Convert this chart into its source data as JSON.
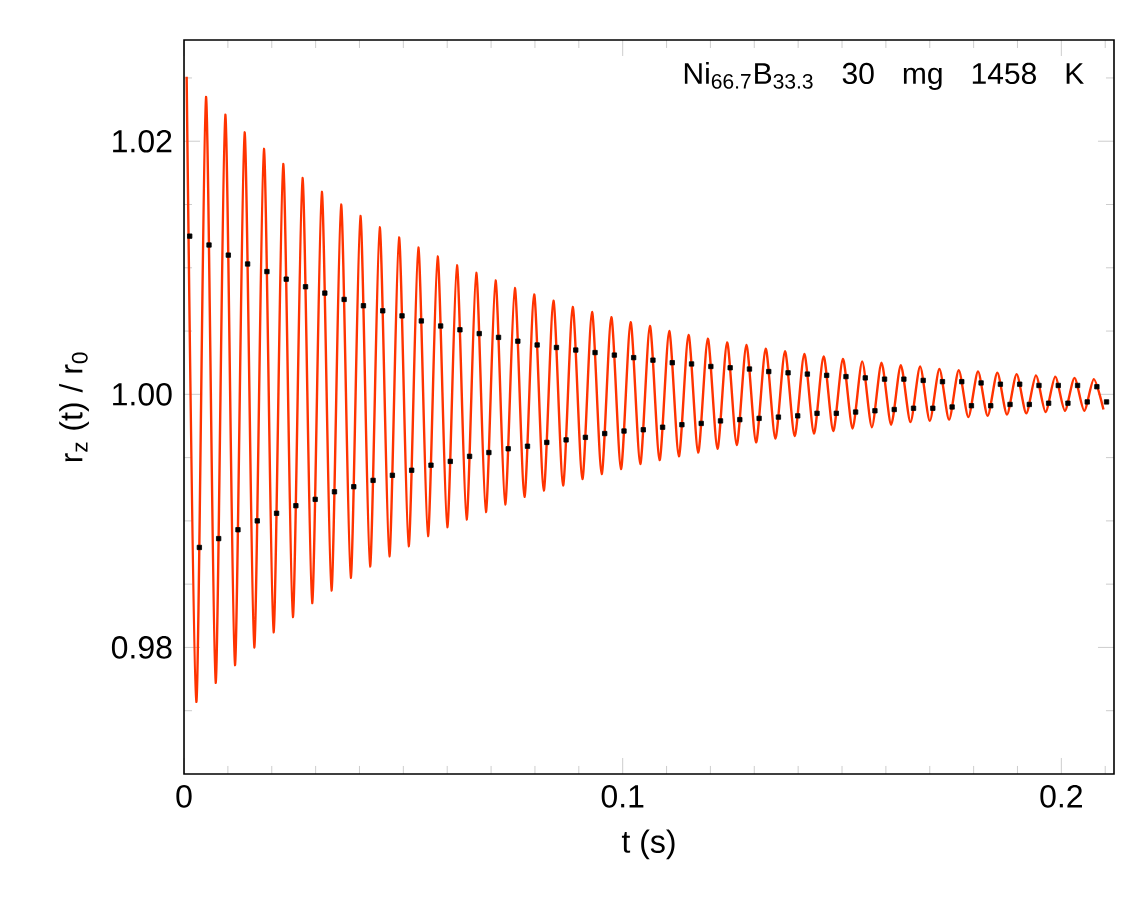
{
  "chart_data": {
    "type": "line",
    "xlabel": "t (s)",
    "ylabel": "r$_{z}$ (t) / r$_{0}$",
    "annotations": [
      "Ni$_{66.7}$B$_{33.3}$   30 mg   1458 K"
    ],
    "xlim": [
      0,
      0.212
    ],
    "ylim": [
      0.97,
      1.028
    ],
    "xticks": [
      {
        "value": 0,
        "label": "0"
      },
      {
        "value": 0.01,
        "label": null
      },
      {
        "value": 0.02,
        "label": null
      },
      {
        "value": 0.03,
        "label": null
      },
      {
        "value": 0.04,
        "label": null
      },
      {
        "value": 0.05,
        "label": null
      },
      {
        "value": 0.06,
        "label": null
      },
      {
        "value": 0.07,
        "label": null
      },
      {
        "value": 0.08,
        "label": null
      },
      {
        "value": 0.09,
        "label": null
      },
      {
        "value": 0.1,
        "label": "0.1"
      },
      {
        "value": 0.11,
        "label": null
      },
      {
        "value": 0.12,
        "label": null
      },
      {
        "value": 0.13,
        "label": null
      },
      {
        "value": 0.14,
        "label": null
      },
      {
        "value": 0.15,
        "label": null
      },
      {
        "value": 0.16,
        "label": null
      },
      {
        "value": 0.17,
        "label": null
      },
      {
        "value": 0.18,
        "label": null
      },
      {
        "value": 0.19,
        "label": null
      },
      {
        "value": 0.2,
        "label": "0.2"
      },
      {
        "value": 0.21,
        "label": null
      }
    ],
    "yticks": [
      {
        "value": 0.975,
        "label": null
      },
      {
        "value": 0.98,
        "label": "0.98"
      },
      {
        "value": 0.985,
        "label": null
      },
      {
        "value": 0.99,
        "label": null
      },
      {
        "value": 0.995,
        "label": null
      },
      {
        "value": 1.0,
        "label": "1.00"
      },
      {
        "value": 1.005,
        "label": null
      },
      {
        "value": 1.01,
        "label": null
      },
      {
        "value": 1.015,
        "label": null
      },
      {
        "value": 1.02,
        "label": "1.02"
      },
      {
        "value": 1.025,
        "label": null
      }
    ],
    "grid": false,
    "series": [
      {
        "type": "scatter",
        "marker": "square",
        "color": "#000000",
        "x": [
          0.0013,
          0.0035,
          0.0057,
          0.0079,
          0.0101,
          0.0123,
          0.0145,
          0.0167,
          0.0189,
          0.0211,
          0.0233,
          0.0255,
          0.0277,
          0.0299,
          0.0321,
          0.0343,
          0.0365,
          0.0387,
          0.0409,
          0.0431,
          0.0453,
          0.0475,
          0.0497,
          0.0519,
          0.0541,
          0.0563,
          0.0585,
          0.0607,
          0.0629,
          0.0651,
          0.0673,
          0.0695,
          0.0717,
          0.0739,
          0.0761,
          0.0783,
          0.0805,
          0.0827,
          0.0849,
          0.0871,
          0.0893,
          0.0915,
          0.0937,
          0.0959,
          0.0981,
          0.1003,
          0.1025,
          0.1047,
          0.1069,
          0.1091,
          0.1113,
          0.1135,
          0.1157,
          0.1179,
          0.1201,
          0.1223,
          0.1245,
          0.1267,
          0.1289,
          0.1311,
          0.1333,
          0.1355,
          0.1377,
          0.1399,
          0.1421,
          0.1443,
          0.1465,
          0.1487,
          0.1509,
          0.1531,
          0.1553,
          0.1575,
          0.1597,
          0.1619,
          0.1641,
          0.1663,
          0.1685,
          0.1707,
          0.1729,
          0.1751,
          0.1773,
          0.1795,
          0.1817,
          0.1839,
          0.1861,
          0.1883,
          0.1905,
          0.1927,
          0.1949,
          0.1971,
          0.1993,
          0.2015,
          0.2037,
          0.2059,
          0.2081,
          0.2103
        ],
        "values": [
          1.0125,
          0.9879,
          1.0118,
          0.9886,
          1.011,
          0.9893,
          1.0103,
          0.99,
          1.0097,
          0.9906,
          1.0091,
          0.9912,
          1.0085,
          0.9917,
          1.008,
          0.9923,
          1.0075,
          0.9927,
          1.007,
          0.9932,
          1.0066,
          0.9936,
          1.0062,
          0.994,
          1.0058,
          0.9944,
          1.0054,
          0.9947,
          1.0051,
          0.9951,
          1.0048,
          0.9954,
          1.0045,
          0.9957,
          1.0042,
          0.9959,
          1.0039,
          0.9962,
          1.0037,
          0.9964,
          1.0035,
          0.9966,
          1.0033,
          0.9969,
          1.0031,
          0.9971,
          1.0029,
          0.9972,
          1.0027,
          0.9974,
          1.0025,
          0.9976,
          1.0024,
          0.9977,
          1.0022,
          0.9979,
          1.0021,
          0.998,
          1.002,
          0.9981,
          1.0018,
          0.9982,
          1.0017,
          0.9983,
          1.0016,
          0.9985,
          1.0015,
          0.9985,
          1.0014,
          0.9986,
          1.0013,
          0.9987,
          1.0012,
          0.9988,
          1.0012,
          0.9989,
          1.0011,
          0.9989,
          1.001,
          0.999,
          1.001,
          0.9991,
          1.0009,
          0.9991,
          1.0008,
          0.9992,
          1.0008,
          0.9992,
          1.0007,
          0.9993,
          1.0007,
          0.9993,
          1.0007,
          0.9994,
          1.0006,
          0.9994
        ]
      },
      {
        "line_style": "solid",
        "color": "#ff3300",
        "x": [
          0.0006,
          0.0028,
          0.005,
          0.0072,
          0.0094,
          0.0116,
          0.0138,
          0.016,
          0.0182,
          0.0204,
          0.0226,
          0.0248,
          0.027,
          0.0292,
          0.0314,
          0.0336,
          0.0358,
          0.038,
          0.0402,
          0.0424,
          0.0446,
          0.0468,
          0.049,
          0.0512,
          0.0534,
          0.0556,
          0.0578,
          0.06,
          0.0622,
          0.0644,
          0.0666,
          0.0688,
          0.071,
          0.0732,
          0.0754,
          0.0776,
          0.0798,
          0.082,
          0.0842,
          0.0864,
          0.0886,
          0.0908,
          0.093,
          0.0952,
          0.0974,
          0.0996,
          0.1018,
          0.104,
          0.1062,
          0.1084,
          0.1106,
          0.1128,
          0.115,
          0.1172,
          0.1194,
          0.1216,
          0.1238,
          0.126,
          0.1282,
          0.1304,
          0.1326,
          0.1348,
          0.137,
          0.1392,
          0.1414,
          0.1436,
          0.1458,
          0.148,
          0.1502,
          0.1524,
          0.1546,
          0.1568,
          0.159,
          0.1612,
          0.1634,
          0.1656,
          0.1678,
          0.17,
          0.1722,
          0.1744,
          0.1766,
          0.1788,
          0.181,
          0.1832,
          0.1854,
          0.1876,
          0.1898,
          0.192,
          0.1942,
          0.1964,
          0.1986,
          0.2008,
          0.203,
          0.2052,
          0.2074,
          0.2096
        ],
        "values": [
          1.0251,
          0.9757,
          1.0235,
          0.9772,
          1.0221,
          0.9786,
          1.0207,
          0.98,
          1.0194,
          0.9812,
          1.0182,
          0.9824,
          1.0171,
          0.9835,
          1.016,
          0.9845,
          1.015,
          0.9855,
          1.0141,
          0.9864,
          1.0132,
          0.9872,
          1.0124,
          0.988,
          1.0116,
          0.9888,
          1.0109,
          0.9895,
          1.0102,
          0.9901,
          1.0096,
          0.9907,
          1.009,
          0.9913,
          1.0084,
          0.9919,
          1.0079,
          0.9924,
          1.0074,
          0.9928,
          1.0069,
          0.9933,
          1.0065,
          0.9937,
          1.0061,
          0.9941,
          1.0057,
          0.9945,
          1.0054,
          0.9948,
          1.005,
          0.9951,
          1.0047,
          0.9954,
          1.0044,
          0.9957,
          1.0041,
          0.996,
          1.0039,
          0.9962,
          1.0036,
          0.9965,
          1.0034,
          0.9967,
          1.0032,
          0.9969,
          1.003,
          0.9971,
          1.0028,
          0.9973,
          1.0026,
          0.9974,
          1.0025,
          0.9976,
          1.0023,
          0.9978,
          1.0022,
          0.9979,
          1.002,
          0.998,
          1.0019,
          0.9982,
          1.0018,
          0.9983,
          1.0017,
          0.9984,
          1.0016,
          0.9985,
          1.0015,
          0.9986,
          1.0014,
          0.9987,
          1.0013,
          0.9987,
          1.0012,
          0.9988
        ]
      }
    ]
  }
}
